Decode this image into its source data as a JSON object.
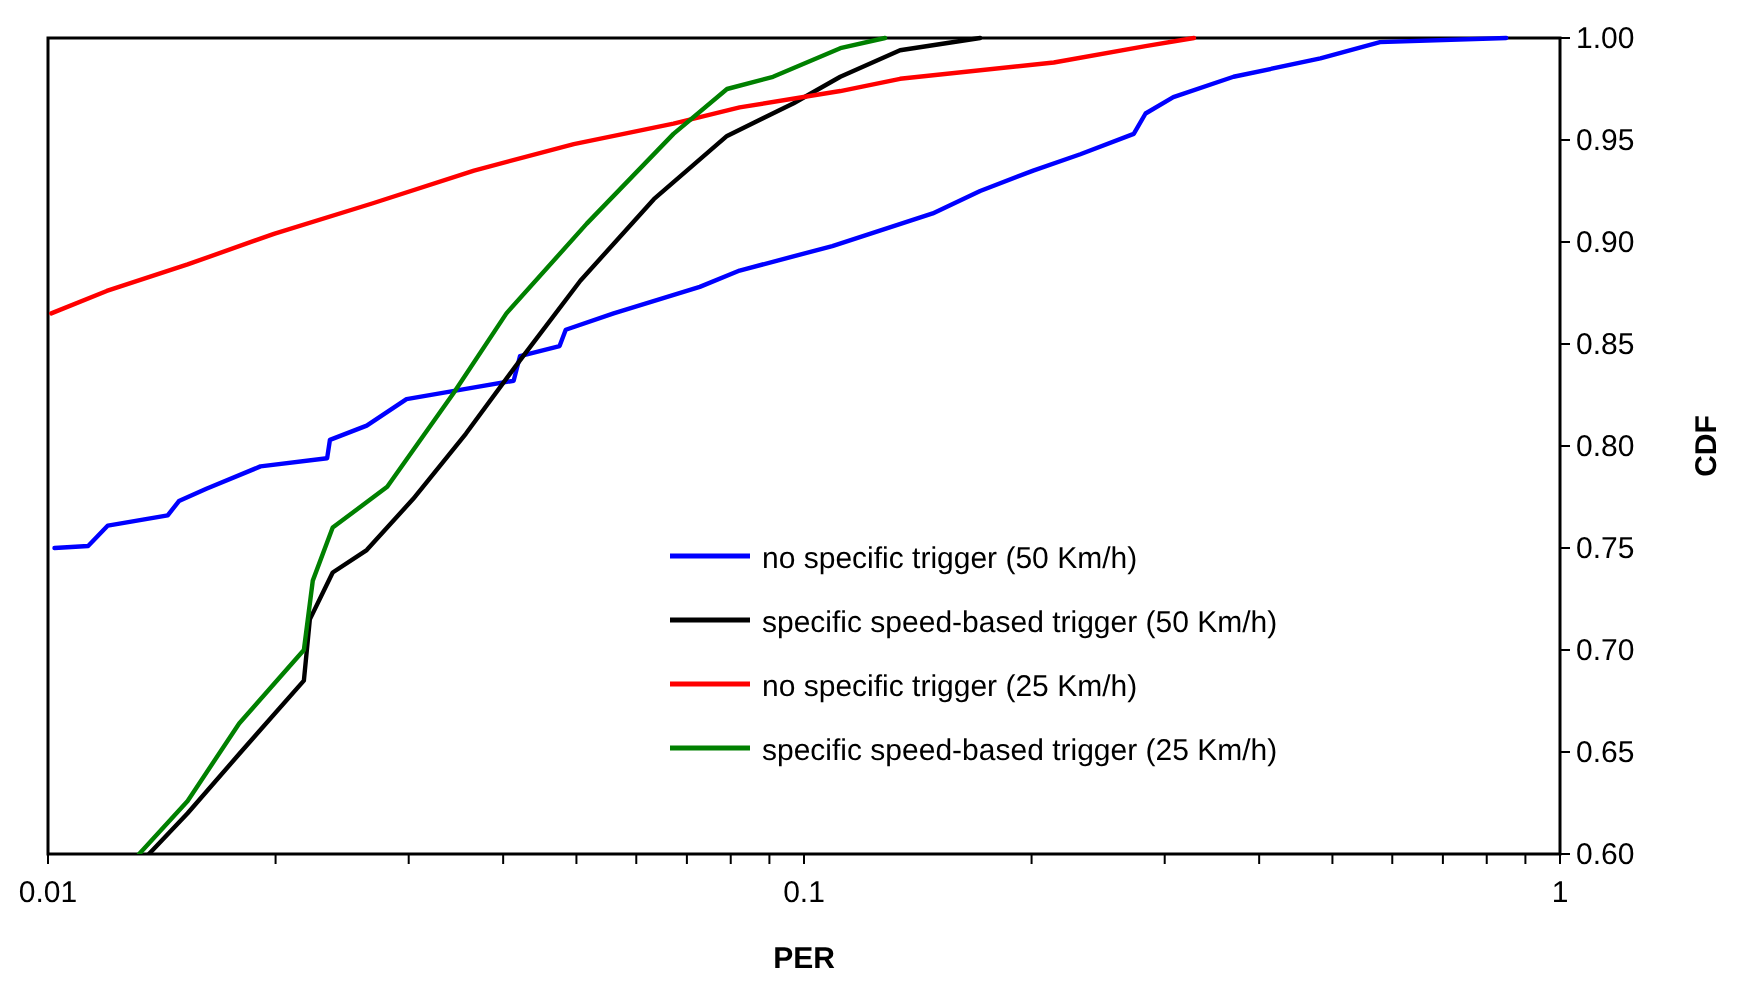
{
  "chart_data": {
    "type": "line",
    "xlabel": "PER",
    "ylabel": "CDF",
    "log": "x",
    "xlim": [
      0.01,
      1
    ],
    "ylim": [
      0.6,
      1
    ],
    "xticks": [
      0.01,
      {
        "value": 0.02,
        "label": null
      },
      {
        "value": 0.03,
        "label": null
      },
      {
        "value": 0.04,
        "label": null
      },
      {
        "value": 0.05,
        "label": null
      },
      {
        "value": 0.06,
        "label": null
      },
      {
        "value": 0.07,
        "label": null
      },
      {
        "value": 0.08,
        "label": null
      },
      {
        "value": 0.09,
        "label": null
      },
      0.1,
      {
        "value": 0.2,
        "label": null
      },
      {
        "value": 0.3,
        "label": null
      },
      {
        "value": 0.4,
        "label": null
      },
      {
        "value": 0.5,
        "label": null
      },
      {
        "value": 0.6,
        "label": null
      },
      {
        "value": 0.7,
        "label": null
      },
      {
        "value": 0.8,
        "label": null
      },
      {
        "value": 0.9,
        "label": null
      },
      1
    ],
    "yticks": [
      {
        "value": 0.6,
        "label": "0.60"
      },
      {
        "value": 0.65,
        "label": "0.65"
      },
      {
        "value": 0.7,
        "label": "0.70"
      },
      {
        "value": 0.75,
        "label": "0.75"
      },
      {
        "value": 0.8,
        "label": "0.80"
      },
      {
        "value": 0.85,
        "label": "0.85"
      },
      {
        "value": 0.9,
        "label": "0.90"
      },
      {
        "value": 0.95,
        "label": "0.95"
      },
      {
        "value": 1,
        "label": "1.00"
      }
    ],
    "grid": false,
    "legend": "bottom right",
    "marker": "none",
    "line_style": "solid",
    "series": [
      {
        "name": "no specific trigger (50 Km/h)",
        "color": "#0000ff",
        "x": [
          0.0102,
          0.0113,
          0.012,
          0.0144,
          0.0149,
          0.0162,
          0.0191,
          0.0234,
          0.0236,
          0.0264,
          0.0298,
          0.0357,
          0.0413,
          0.0421,
          0.0475,
          0.0484,
          0.056,
          0.0728,
          0.0822,
          0.109,
          0.148,
          0.171,
          0.201,
          0.232,
          0.273,
          0.283,
          0.308,
          0.37,
          0.482,
          0.578,
          0.849
        ],
        "values": [
          0.75,
          0.751,
          0.761,
          0.766,
          0.773,
          0.779,
          0.79,
          0.794,
          0.803,
          0.81,
          0.823,
          0.828,
          0.832,
          0.844,
          0.849,
          0.857,
          0.865,
          0.878,
          0.886,
          0.898,
          0.914,
          0.925,
          0.935,
          0.943,
          0.953,
          0.963,
          0.971,
          0.981,
          0.99,
          0.998,
          1
        ]
      },
      {
        "name": "specific speed-based trigger (50 Km/h)",
        "color": "#000000",
        "x": [
          0.0136,
          0.0153,
          0.0179,
          0.0218,
          0.0222,
          0.0238,
          0.0264,
          0.0304,
          0.0357,
          0.0421,
          0.0506,
          0.0633,
          0.0791,
          0.0969,
          0.1117,
          0.134,
          0.171
        ],
        "values": [
          0.6,
          0.62,
          0.649,
          0.685,
          0.715,
          0.738,
          0.749,
          0.774,
          0.806,
          0.842,
          0.881,
          0.921,
          0.952,
          0.968,
          0.981,
          0.994,
          1
        ]
      },
      {
        "name": "no specific trigger (25 Km/h)",
        "color": "#ff0000",
        "x": [
          0.0101,
          0.01196,
          0.0153,
          0.0199,
          0.0269,
          0.0366,
          0.0496,
          0.0672,
          0.0822,
          0.1117,
          0.134,
          0.214,
          0.283,
          0.328
        ],
        "values": [
          0.865,
          0.876,
          0.889,
          0.904,
          0.919,
          0.935,
          0.948,
          0.958,
          0.966,
          0.974,
          0.98,
          0.988,
          0.996,
          1
        ]
      },
      {
        "name": "specific speed-based trigger (25 Km/h)",
        "color": "#008000",
        "x": [
          0.0132,
          0.0153,
          0.0179,
          0.0218,
          0.0224,
          0.0238,
          0.0281,
          0.0344,
          0.0404,
          0.0516,
          0.0672,
          0.0791,
          0.091,
          0.1117,
          0.128
        ],
        "values": [
          0.6,
          0.626,
          0.664,
          0.7,
          0.734,
          0.76,
          0.78,
          0.826,
          0.865,
          0.909,
          0.953,
          0.975,
          0.981,
          0.995,
          1
        ]
      }
    ]
  }
}
